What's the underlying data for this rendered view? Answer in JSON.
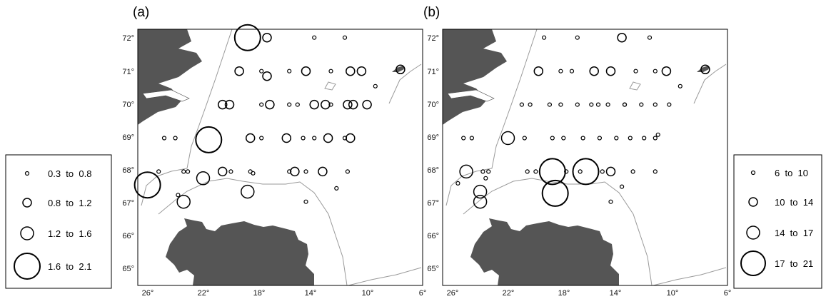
{
  "chart_data": [
    {
      "type": "scatter",
      "panel_label": "(a)",
      "xticks": [
        "26°",
        "22°",
        "18°",
        "14°",
        "10°",
        "6°"
      ],
      "yticks": [
        "72°",
        "71°",
        "70°",
        "69°",
        "68°",
        "67°",
        "66°",
        "65°"
      ],
      "xlim": [
        26.5,
        6
      ],
      "ylim": [
        64.6,
        72.25
      ],
      "legend": {
        "entries": [
          {
            "label": "0.3  to  0.8",
            "lo": 0.3,
            "hi": 0.8
          },
          {
            "label": "0.8  to  1.2",
            "lo": 0.8,
            "hi": 1.2
          },
          {
            "label": "1.2  to  1.6",
            "lo": 1.2,
            "hi": 1.6
          },
          {
            "label": "1.6  to  2.1",
            "lo": 1.6,
            "hi": 2.1
          }
        ]
      },
      "points": [
        {
          "lon": 18.6,
          "lat": 72.0,
          "v": 2.1
        },
        {
          "lon": 17.2,
          "lat": 72.0,
          "v": 1.2
        },
        {
          "lon": 13.8,
          "lat": 72.0,
          "v": 0.8
        },
        {
          "lon": 11.6,
          "lat": 72.0,
          "v": 0.8
        },
        {
          "lon": 19.2,
          "lat": 71.0,
          "v": 1.2
        },
        {
          "lon": 17.6,
          "lat": 71.0,
          "v": 0.8
        },
        {
          "lon": 17.2,
          "lat": 70.85,
          "v": 1.2
        },
        {
          "lon": 15.6,
          "lat": 71.0,
          "v": 0.5
        },
        {
          "lon": 14.4,
          "lat": 71.0,
          "v": 1.2
        },
        {
          "lon": 12.6,
          "lat": 71.0,
          "v": 0.8
        },
        {
          "lon": 11.2,
          "lat": 71.0,
          "v": 1.2
        },
        {
          "lon": 10.4,
          "lat": 71.0,
          "v": 1.2
        },
        {
          "lon": 7.6,
          "lat": 71.05,
          "v": 1.2
        },
        {
          "lon": 9.4,
          "lat": 70.55,
          "v": 0.8
        },
        {
          "lon": 20.4,
          "lat": 70.0,
          "v": 1.2
        },
        {
          "lon": 19.9,
          "lat": 70.0,
          "v": 1.2
        },
        {
          "lon": 17.6,
          "lat": 70.0,
          "v": 0.5
        },
        {
          "lon": 17.0,
          "lat": 70.0,
          "v": 1.2
        },
        {
          "lon": 15.6,
          "lat": 70.0,
          "v": 0.8
        },
        {
          "lon": 15.0,
          "lat": 70.0,
          "v": 0.8
        },
        {
          "lon": 13.8,
          "lat": 70.0,
          "v": 1.2
        },
        {
          "lon": 13.0,
          "lat": 70.0,
          "v": 1.2
        },
        {
          "lon": 12.6,
          "lat": 70.0,
          "v": 0.8
        },
        {
          "lon": 11.4,
          "lat": 70.0,
          "v": 1.2
        },
        {
          "lon": 11.0,
          "lat": 70.0,
          "v": 1.2
        },
        {
          "lon": 10.0,
          "lat": 70.0,
          "v": 1.2
        },
        {
          "lon": 24.6,
          "lat": 69.0,
          "v": 0.8
        },
        {
          "lon": 23.8,
          "lat": 69.0,
          "v": 0.8
        },
        {
          "lon": 21.4,
          "lat": 68.95,
          "v": 1.9
        },
        {
          "lon": 18.4,
          "lat": 69.0,
          "v": 1.2
        },
        {
          "lon": 17.6,
          "lat": 69.0,
          "v": 0.8
        },
        {
          "lon": 15.8,
          "lat": 69.0,
          "v": 1.2
        },
        {
          "lon": 14.6,
          "lat": 69.0,
          "v": 0.8
        },
        {
          "lon": 13.8,
          "lat": 69.0,
          "v": 0.8
        },
        {
          "lon": 12.8,
          "lat": 69.0,
          "v": 1.2
        },
        {
          "lon": 11.6,
          "lat": 69.0,
          "v": 0.8
        },
        {
          "lon": 11.2,
          "lat": 69.0,
          "v": 1.2
        },
        {
          "lon": 25.0,
          "lat": 68.0,
          "v": 0.5
        },
        {
          "lon": 23.2,
          "lat": 68.0,
          "v": 0.5
        },
        {
          "lon": 22.9,
          "lat": 68.0,
          "v": 0.5
        },
        {
          "lon": 21.8,
          "lat": 67.8,
          "v": 1.6
        },
        {
          "lon": 20.4,
          "lat": 68.0,
          "v": 1.2
        },
        {
          "lon": 19.8,
          "lat": 68.0,
          "v": 0.5
        },
        {
          "lon": 18.4,
          "lat": 68.0,
          "v": 0.8
        },
        {
          "lon": 18.2,
          "lat": 67.95,
          "v": 0.8
        },
        {
          "lon": 15.6,
          "lat": 68.0,
          "v": 0.8
        },
        {
          "lon": 15.2,
          "lat": 68.0,
          "v": 1.2
        },
        {
          "lon": 14.4,
          "lat": 68.0,
          "v": 0.8
        },
        {
          "lon": 13.2,
          "lat": 68.0,
          "v": 1.2
        },
        {
          "lon": 11.4,
          "lat": 68.0,
          "v": 0.5
        },
        {
          "lon": 12.2,
          "lat": 67.5,
          "v": 0.8
        },
        {
          "lon": 25.8,
          "lat": 67.6,
          "v": 1.9
        },
        {
          "lon": 23.6,
          "lat": 67.3,
          "v": 0.8
        },
        {
          "lon": 23.2,
          "lat": 67.1,
          "v": 1.6
        },
        {
          "lon": 18.6,
          "lat": 67.4,
          "v": 1.6
        },
        {
          "lon": 14.4,
          "lat": 67.1,
          "v": 0.8
        }
      ]
    },
    {
      "type": "scatter",
      "panel_label": "(b)",
      "xticks": [
        "26°",
        "22°",
        "18°",
        "14°",
        "10°",
        "6°"
      ],
      "yticks": [
        "72°",
        "71°",
        "70°",
        "69°",
        "68°",
        "67°",
        "66°",
        "65°"
      ],
      "xlim": [
        26.5,
        6
      ],
      "ylim": [
        64.6,
        72.25
      ],
      "legend": {
        "entries": [
          {
            "label": "6  to  10",
            "lo": 6,
            "hi": 10
          },
          {
            "label": "10  to  14",
            "lo": 10,
            "hi": 14
          },
          {
            "label": "14  to  17",
            "lo": 14,
            "hi": 17
          },
          {
            "label": "17  to  21",
            "lo": 17,
            "hi": 21
          }
        ]
      },
      "points": [
        {
          "lon": 19.2,
          "lat": 72.0,
          "v": 10
        },
        {
          "lon": 16.8,
          "lat": 72.0,
          "v": 10
        },
        {
          "lon": 13.6,
          "lat": 72.0,
          "v": 14
        },
        {
          "lon": 11.6,
          "lat": 72.0,
          "v": 10
        },
        {
          "lon": 19.6,
          "lat": 71.0,
          "v": 14
        },
        {
          "lon": 18.0,
          "lat": 71.0,
          "v": 10
        },
        {
          "lon": 17.2,
          "lat": 71.0,
          "v": 8
        },
        {
          "lon": 15.6,
          "lat": 71.0,
          "v": 14
        },
        {
          "lon": 14.4,
          "lat": 71.0,
          "v": 14
        },
        {
          "lon": 12.6,
          "lat": 71.0,
          "v": 10
        },
        {
          "lon": 11.2,
          "lat": 71.0,
          "v": 10
        },
        {
          "lon": 10.4,
          "lat": 71.0,
          "v": 14
        },
        {
          "lon": 7.6,
          "lat": 71.05,
          "v": 14
        },
        {
          "lon": 9.4,
          "lat": 70.55,
          "v": 10
        },
        {
          "lon": 20.8,
          "lat": 70.0,
          "v": 10
        },
        {
          "lon": 20.2,
          "lat": 70.0,
          "v": 10
        },
        {
          "lon": 18.8,
          "lat": 70.0,
          "v": 10
        },
        {
          "lon": 18.0,
          "lat": 70.0,
          "v": 10
        },
        {
          "lon": 16.8,
          "lat": 70.0,
          "v": 10
        },
        {
          "lon": 15.8,
          "lat": 70.0,
          "v": 8
        },
        {
          "lon": 15.3,
          "lat": 70.0,
          "v": 8
        },
        {
          "lon": 14.6,
          "lat": 70.0,
          "v": 10
        },
        {
          "lon": 13.4,
          "lat": 70.0,
          "v": 10
        },
        {
          "lon": 13.4,
          "lat": 70.0,
          "v": 8
        },
        {
          "lon": 12.2,
          "lat": 70.0,
          "v": 10
        },
        {
          "lon": 11.2,
          "lat": 70.0,
          "v": 10
        },
        {
          "lon": 10.2,
          "lat": 70.0,
          "v": 8
        },
        {
          "lon": 25.0,
          "lat": 69.0,
          "v": 10
        },
        {
          "lon": 24.4,
          "lat": 69.0,
          "v": 10
        },
        {
          "lon": 21.8,
          "lat": 69.0,
          "v": 17
        },
        {
          "lon": 20.6,
          "lat": 69.0,
          "v": 10
        },
        {
          "lon": 18.6,
          "lat": 69.0,
          "v": 10
        },
        {
          "lon": 17.8,
          "lat": 69.0,
          "v": 8
        },
        {
          "lon": 16.4,
          "lat": 69.0,
          "v": 8
        },
        {
          "lon": 15.2,
          "lat": 69.0,
          "v": 10
        },
        {
          "lon": 14.0,
          "lat": 69.0,
          "v": 8
        },
        {
          "lon": 13.0,
          "lat": 69.0,
          "v": 8
        },
        {
          "lon": 12.0,
          "lat": 69.0,
          "v": 8
        },
        {
          "lon": 11.2,
          "lat": 69.0,
          "v": 8
        },
        {
          "lon": 11.0,
          "lat": 69.1,
          "v": 8
        },
        {
          "lon": 24.8,
          "lat": 68.0,
          "v": 17
        },
        {
          "lon": 23.6,
          "lat": 68.0,
          "v": 8
        },
        {
          "lon": 23.2,
          "lat": 68.0,
          "v": 8
        },
        {
          "lon": 23.4,
          "lat": 67.8,
          "v": 10
        },
        {
          "lon": 20.4,
          "lat": 68.0,
          "v": 10
        },
        {
          "lon": 19.8,
          "lat": 68.0,
          "v": 10
        },
        {
          "lon": 18.6,
          "lat": 68.0,
          "v": 19
        },
        {
          "lon": 17.6,
          "lat": 68.0,
          "v": 8
        },
        {
          "lon": 16.6,
          "lat": 68.0,
          "v": 10
        },
        {
          "lon": 16.2,
          "lat": 68.0,
          "v": 19
        },
        {
          "lon": 15.0,
          "lat": 68.0,
          "v": 10
        },
        {
          "lon": 14.4,
          "lat": 68.0,
          "v": 14
        },
        {
          "lon": 12.8,
          "lat": 68.0,
          "v": 10
        },
        {
          "lon": 11.2,
          "lat": 68.0,
          "v": 8
        },
        {
          "lon": 13.6,
          "lat": 67.55,
          "v": 8
        },
        {
          "lon": 25.4,
          "lat": 67.65,
          "v": 10
        },
        {
          "lon": 23.8,
          "lat": 67.4,
          "v": 17
        },
        {
          "lon": 23.8,
          "lat": 67.1,
          "v": 17
        },
        {
          "lon": 18.4,
          "lat": 67.35,
          "v": 19
        },
        {
          "lon": 14.4,
          "lat": 67.1,
          "v": 10
        }
      ]
    }
  ]
}
